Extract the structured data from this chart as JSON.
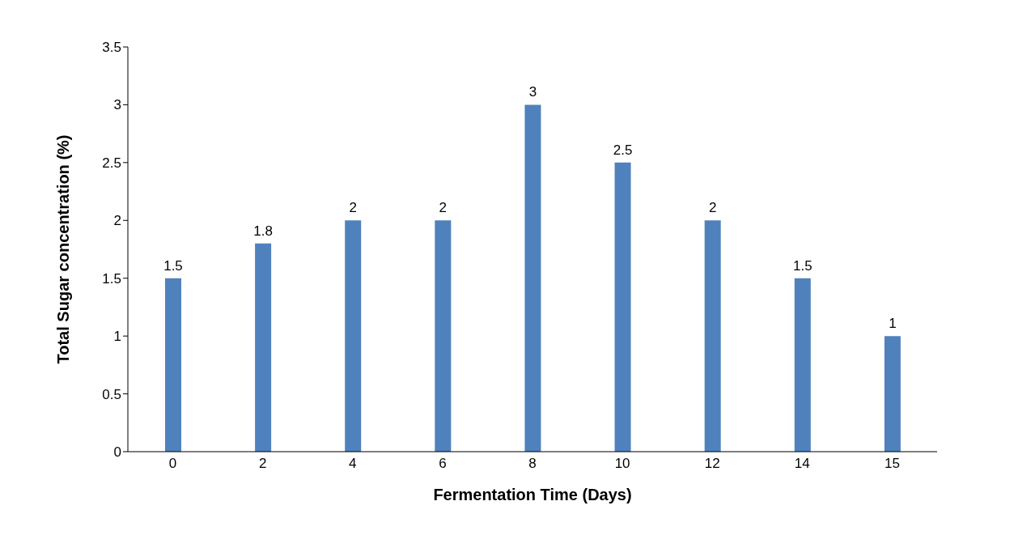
{
  "chart_data": {
    "type": "bar",
    "xlabel": "Fermentation Time (Days)",
    "ylabel": "Total Sugar concentration (%)",
    "categories": [
      "0",
      "2",
      "4",
      "6",
      "8",
      "10",
      "12",
      "14",
      "15"
    ],
    "values": [
      1.5,
      1.8,
      2,
      2,
      3,
      2.5,
      2,
      1.5,
      1
    ],
    "color": "#4f81bd",
    "ylim": [
      0,
      3.5
    ],
    "yticks": [
      0,
      0.5,
      1,
      1.5,
      2,
      2.5,
      3,
      3.5
    ],
    "data_labels": true,
    "grid": false,
    "legend": false
  }
}
